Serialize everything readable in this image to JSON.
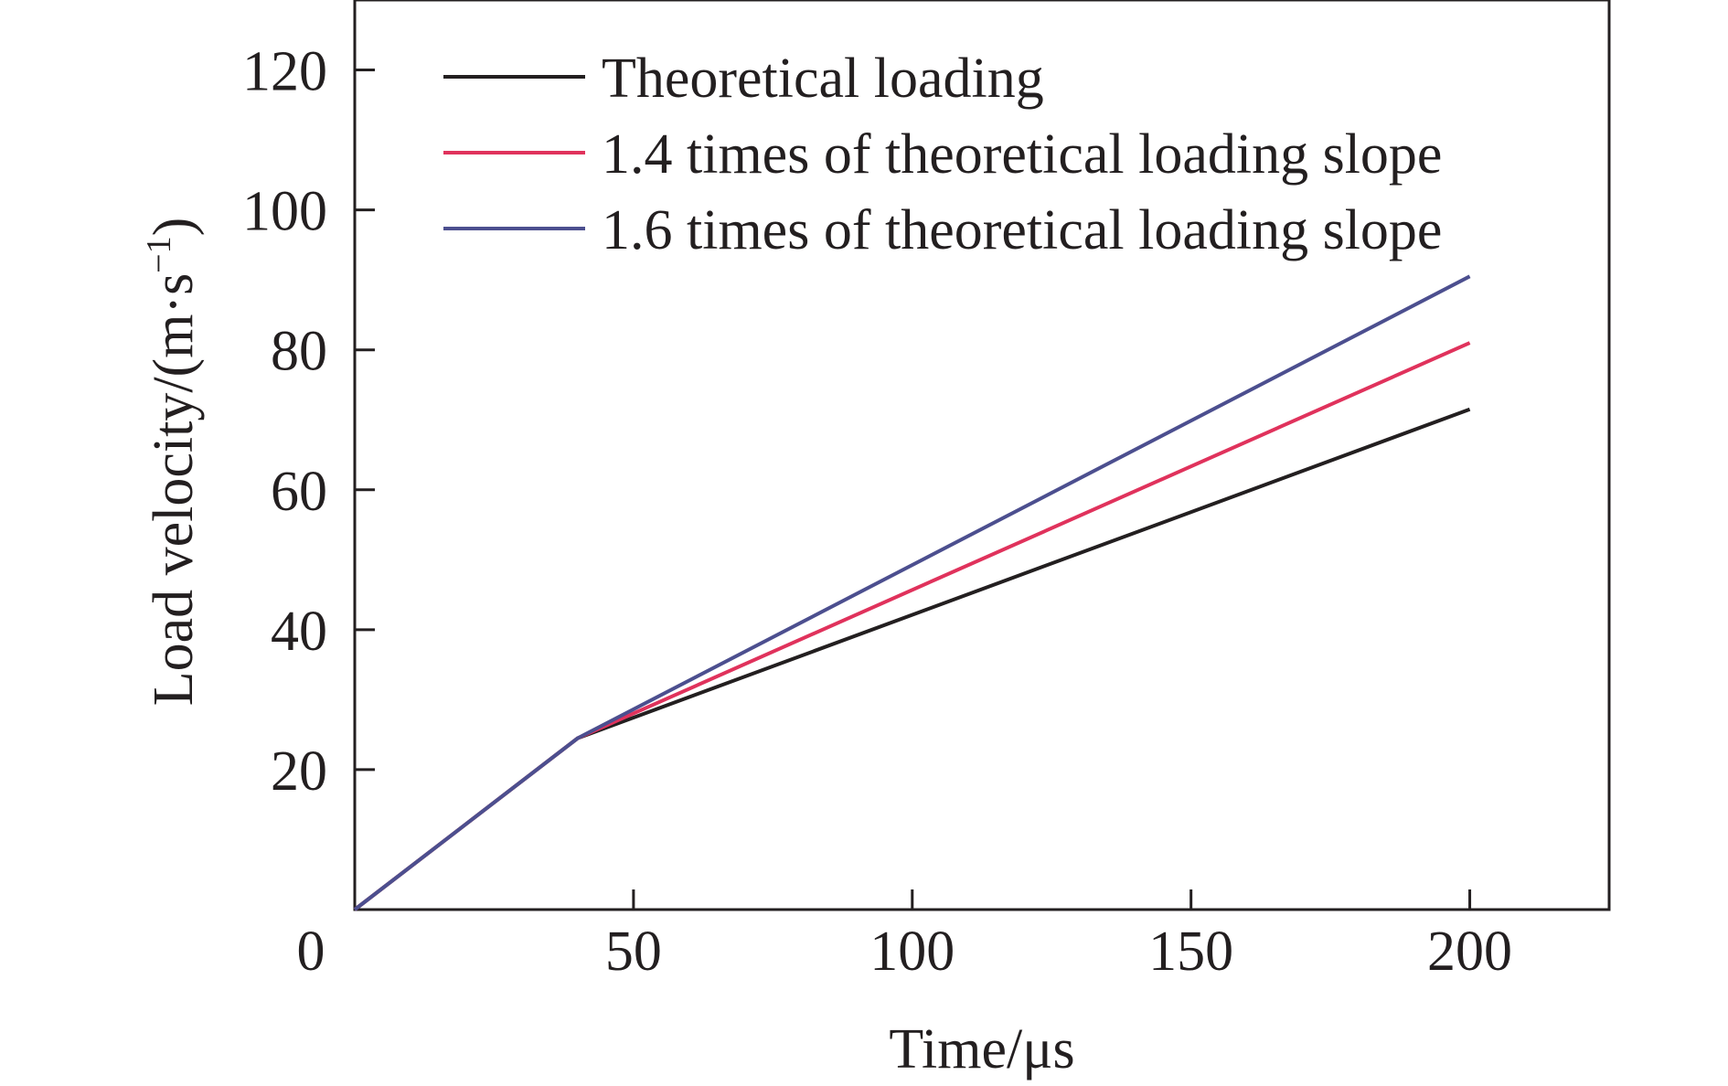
{
  "chart_data": {
    "type": "line",
    "title": "",
    "xlabel": "Time/μs",
    "ylabel_main": "Load velocity/(m·s",
    "ylabel_sup": "−1",
    "ylabel_close": ")",
    "xlim": [
      0,
      225
    ],
    "ylim": [
      0,
      130
    ],
    "x_ticks": [
      50,
      100,
      150,
      200
    ],
    "y_ticks": [
      20,
      40,
      60,
      80,
      100,
      120
    ],
    "origin_label": "0",
    "grid": false,
    "legend_position": "top-left",
    "series": [
      {
        "name": "Theoretical loading",
        "color": "#231f20",
        "x": [
          0,
          40,
          200
        ],
        "y": [
          0,
          24.5,
          71.5
        ]
      },
      {
        "name": "1.4 times of theoretical loading slope",
        "color": "#e0325c",
        "x": [
          0,
          40,
          200
        ],
        "y": [
          0,
          24.5,
          81
        ]
      },
      {
        "name": "1.6 times of theoretical loading slope",
        "color": "#4c4f8f",
        "x": [
          0,
          40,
          200
        ],
        "y": [
          0,
          24.5,
          90.5
        ]
      }
    ]
  }
}
